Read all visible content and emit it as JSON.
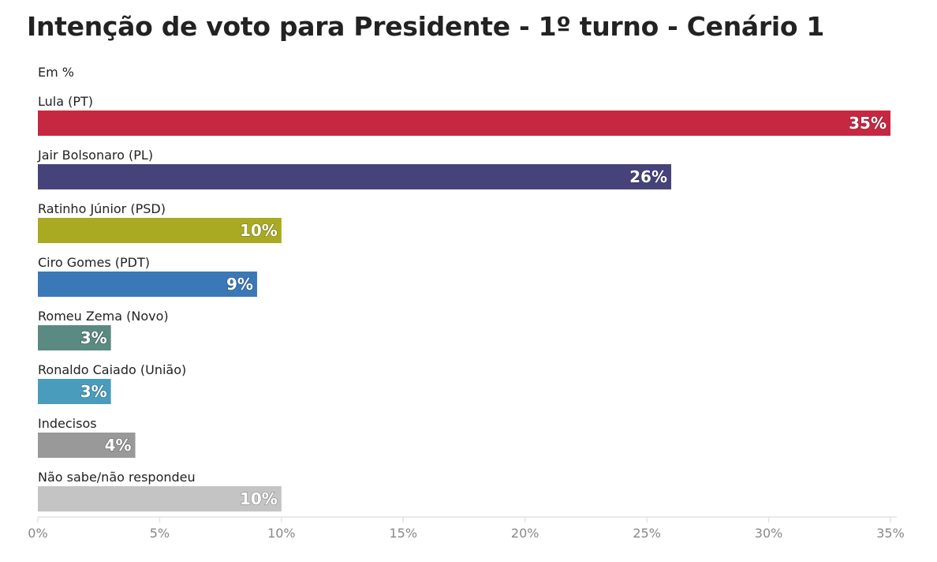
{
  "chart_data": {
    "type": "bar",
    "orientation": "horizontal",
    "title": "Intenção de voto para Presidente - 1º turno - Cenário 1",
    "subtitle": "Em %",
    "categories": [
      "Lula (PT)",
      "Jair Bolsonaro (PL)",
      "Ratinho Júnior (PSD)",
      "Ciro Gomes (PDT)",
      "Romeu Zema (Novo)",
      "Ronaldo Caiado (União)",
      "Indecisos",
      "Não sabe/não respondeu"
    ],
    "values": [
      35,
      26,
      10,
      9,
      3,
      3,
      4,
      10
    ],
    "data_labels": [
      "35%",
      "26%",
      "10%",
      "9%",
      "3%",
      "3%",
      "4%",
      "10%"
    ],
    "colors": [
      "#c62841",
      "#46437a",
      "#aaaa22",
      "#3a78b8",
      "#5a8a82",
      "#4a9cbc",
      "#999999",
      "#c4c4c4"
    ],
    "xlim": [
      0,
      35
    ],
    "xticks": [
      0,
      5,
      10,
      15,
      20,
      25,
      30,
      35
    ],
    "xtick_labels": [
      "0%",
      "5%",
      "10%",
      "15%",
      "20%",
      "25%",
      "30%",
      "35%"
    ],
    "grid": false
  }
}
